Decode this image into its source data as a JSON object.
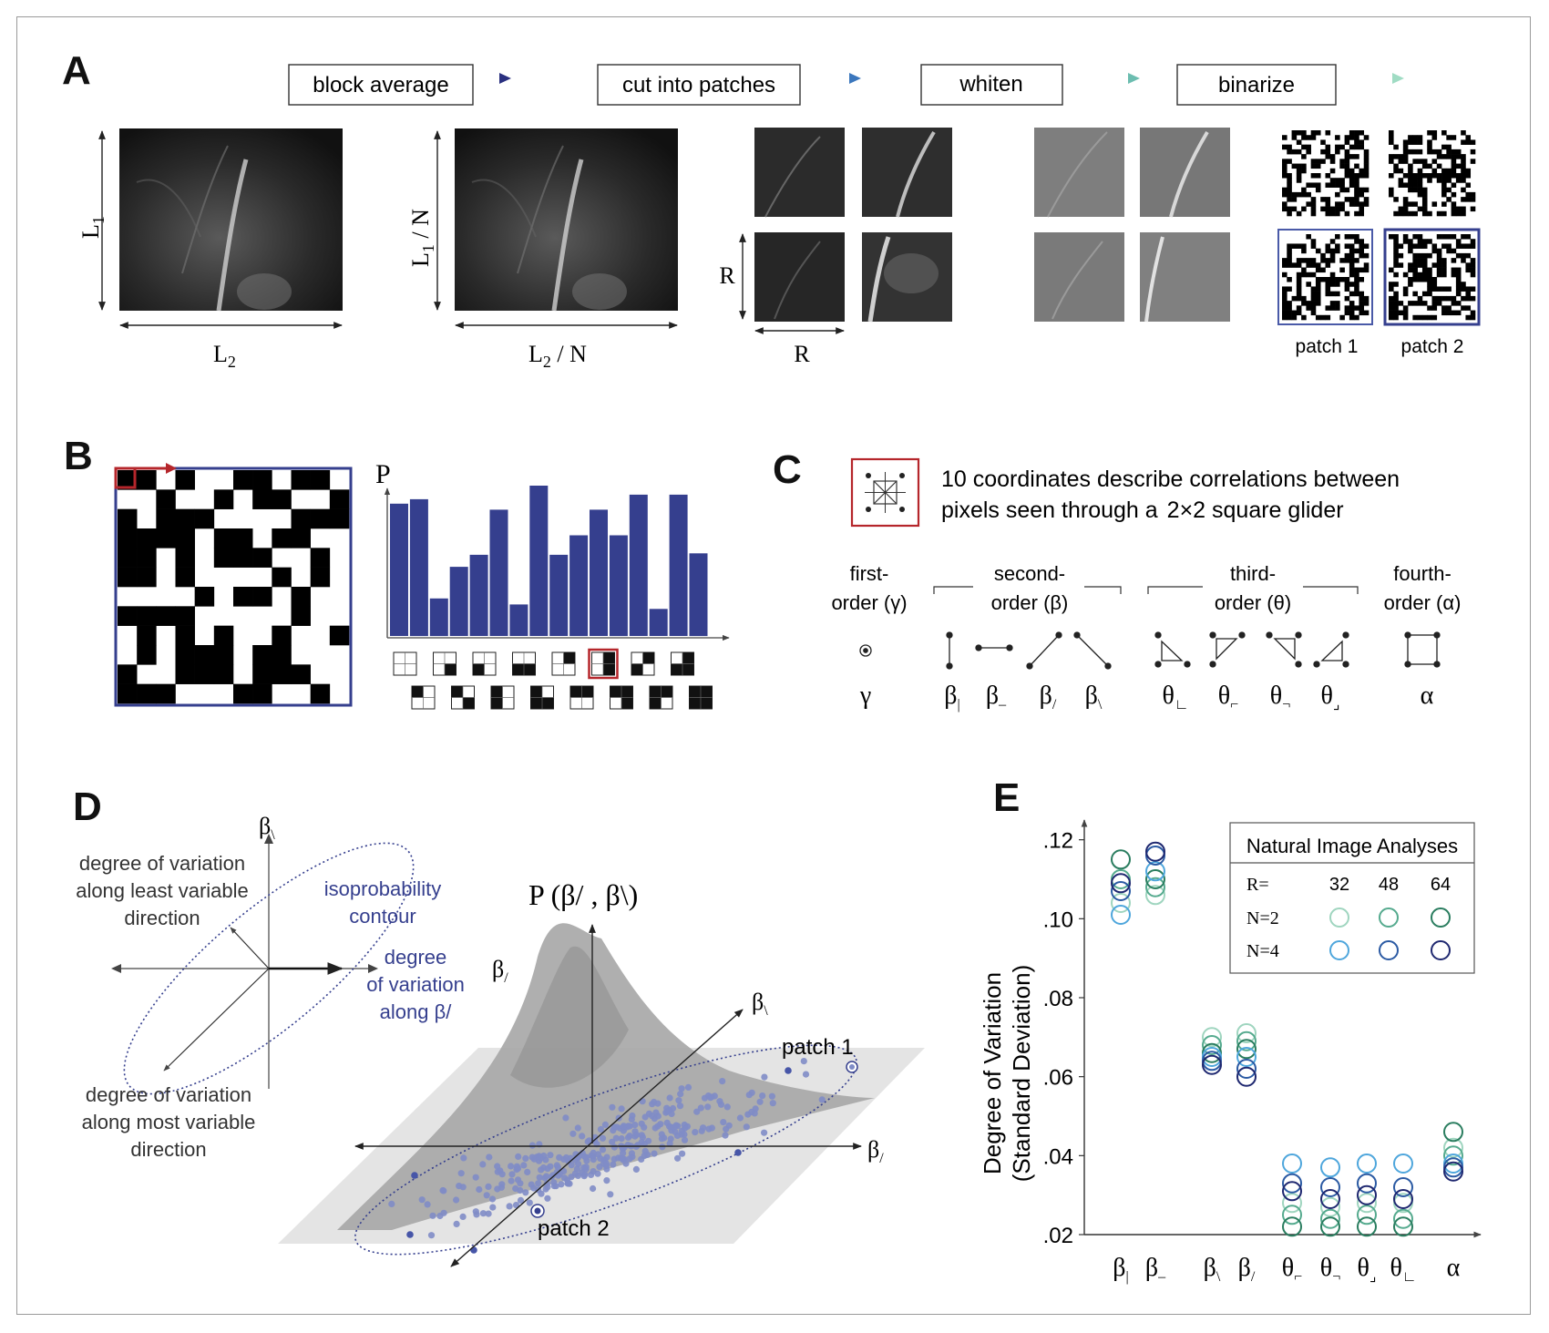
{
  "panels": {
    "A": "A",
    "B": "B",
    "C": "C",
    "D": "D",
    "E": "E"
  },
  "panelA": {
    "pipeline": [
      "block average",
      "cut into patches",
      "whiten",
      "binarize"
    ],
    "l1": "L",
    "l1_sub": "1",
    "l2": "L",
    "l2_sub": "2",
    "l1n_main": "L",
    "l1n_sub": "1",
    "l1n_rest": " / N",
    "l2n_main": "L",
    "l2n_sub": "2",
    "l2n_rest": " / N",
    "r_vert": "R",
    "r_horiz": "R",
    "patch1": "patch 1",
    "patch2": "patch 2"
  },
  "panelB": {
    "y_label": "P",
    "bar_color": "#353f8e",
    "bar_values": [
      0.88,
      0.91,
      0.25,
      0.46,
      0.54,
      0.84,
      0.21,
      1.0,
      0.54,
      0.67,
      0.84,
      0.67,
      0.94,
      0.18,
      0.94,
      0.55
    ],
    "highlight_index": 5
  },
  "panelC": {
    "desc_line1": "10 coordinates describe correlations between",
    "desc_line2": "pixels seen through a",
    "desc_glider": "2×2 square glider",
    "groups": [
      {
        "l1": "first-",
        "l2": "order (γ)"
      },
      {
        "l1": "second-",
        "l2": "order (β)"
      },
      {
        "l1": "third-",
        "l2": "order (θ)"
      },
      {
        "l1": "fourth-",
        "l2": "order (α)"
      }
    ],
    "symbols": [
      {
        "base": "γ",
        "sub": ""
      },
      {
        "base": "β",
        "sub": "|"
      },
      {
        "base": "β",
        "sub": "–"
      },
      {
        "base": "β",
        "sub": "/"
      },
      {
        "base": "β",
        "sub": "\\"
      },
      {
        "base": "θ",
        "sub": "∟"
      },
      {
        "base": "θ",
        "sub": "⌐"
      },
      {
        "base": "θ",
        "sub": "¬"
      },
      {
        "base": "θ",
        "sub": "⌟"
      },
      {
        "base": "α",
        "sub": ""
      }
    ]
  },
  "panelD": {
    "axis_top": "β",
    "axis_top_sub": "\\",
    "axis_right": "β",
    "axis_right_sub": "/",
    "least_l1": "degree of variation",
    "least_l2": "along least variable",
    "least_l3": "direction",
    "iso_l1": "isoprobability",
    "iso_l2": "contour",
    "along_l1": "degree",
    "along_l2": "of variation",
    "along_l3": "along β/",
    "most_l1": "degree of variation",
    "most_l2": "along most variable",
    "most_l3": "direction",
    "p_title": "P (β/ , β\\)",
    "patch1": "patch 1",
    "patch2": "patch 2",
    "dot_color": "#7f8cc6"
  },
  "chart_data": {
    "type": "scatter",
    "ylabel_line1": "Degree of Variation",
    "ylabel_line2": "(Standard Deviation)",
    "ylim": [
      0.02,
      0.125
    ],
    "yticks": [
      ".02",
      ".04",
      ".06",
      ".08",
      ".10",
      ".12"
    ],
    "ytick_values": [
      0.02,
      0.04,
      0.06,
      0.08,
      0.1,
      0.12
    ],
    "categories": [
      {
        "base": "β",
        "sub": "|"
      },
      {
        "base": "β",
        "sub": "–"
      },
      {
        "base": "β",
        "sub": "\\"
      },
      {
        "base": "β",
        "sub": "/"
      },
      {
        "base": "θ",
        "sub": "⌐"
      },
      {
        "base": "θ",
        "sub": "¬"
      },
      {
        "base": "θ",
        "sub": "⌟"
      },
      {
        "base": "θ",
        "sub": "∟"
      },
      {
        "base": "α",
        "sub": ""
      }
    ],
    "legend_title": "Natural Image Analyses",
    "legend_r_label": "R=",
    "legend_r_values": [
      "32",
      "48",
      "64"
    ],
    "legend_rows": [
      "N=2",
      "N=4"
    ],
    "series": [
      {
        "N": 2,
        "R": 32,
        "color": "#9fd5bf",
        "values": [
          0.104,
          0.106,
          0.07,
          0.071,
          0.028,
          0.027,
          0.028,
          0.028,
          0.042
        ]
      },
      {
        "N": 2,
        "R": 48,
        "color": "#55aa8e",
        "values": [
          0.11,
          0.108,
          0.068,
          0.069,
          0.025,
          0.024,
          0.025,
          0.024,
          0.04
        ]
      },
      {
        "N": 2,
        "R": 64,
        "color": "#2a7d5f",
        "values": [
          0.115,
          0.11,
          0.066,
          0.067,
          0.022,
          0.022,
          0.022,
          0.022,
          0.046
        ]
      },
      {
        "N": 4,
        "R": 32,
        "color": "#4ea6dc",
        "values": [
          0.101,
          0.112,
          0.065,
          0.065,
          0.038,
          0.037,
          0.038,
          0.038,
          0.038
        ]
      },
      {
        "N": 4,
        "R": 48,
        "color": "#2b5aa3",
        "values": [
          0.107,
          0.116,
          0.064,
          0.062,
          0.033,
          0.032,
          0.033,
          0.032,
          0.037
        ]
      },
      {
        "N": 4,
        "R": 64,
        "color": "#1f2870",
        "values": [
          0.109,
          0.117,
          0.063,
          0.06,
          0.031,
          0.029,
          0.03,
          0.029,
          0.036
        ]
      }
    ]
  }
}
